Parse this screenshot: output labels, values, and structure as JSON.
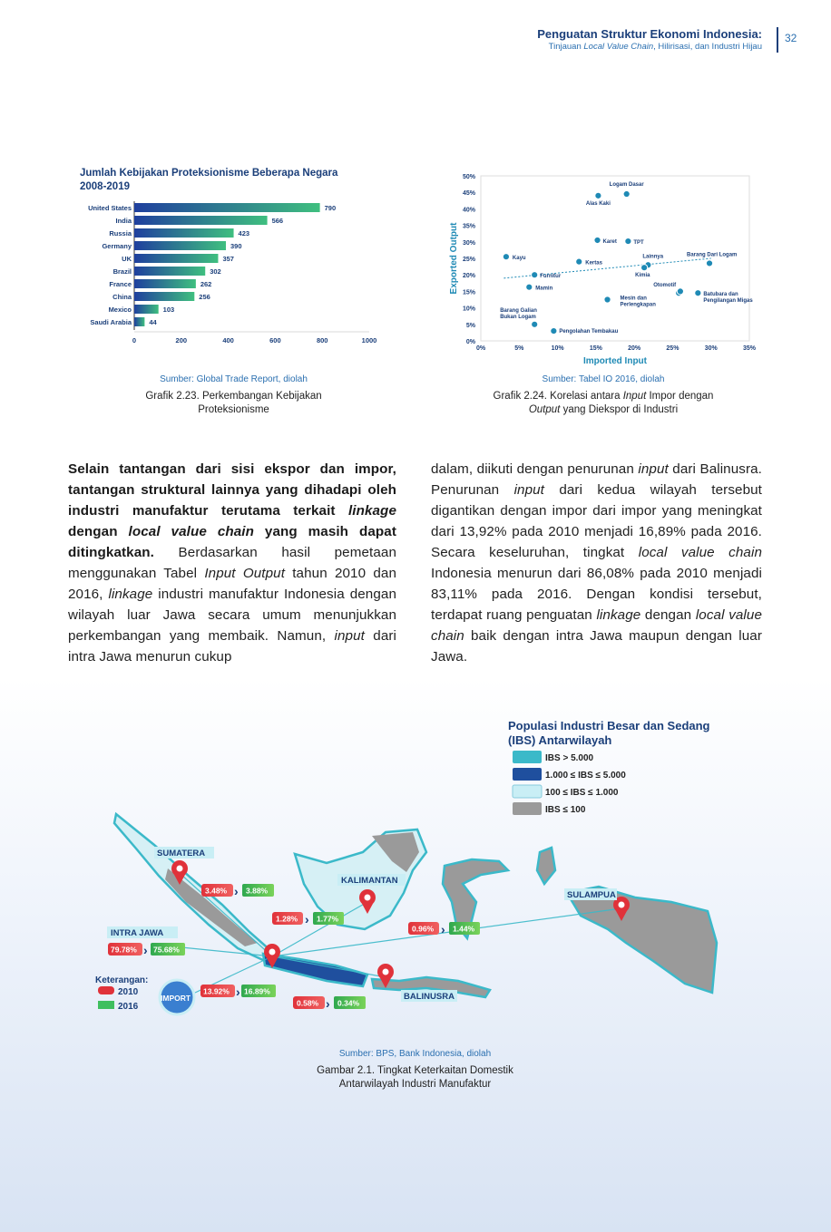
{
  "header": {
    "title": "Penguatan Struktur Ekonomi Indonesia:",
    "subtitle_pre": "Tinjauan ",
    "subtitle_italic": "Local Value Chain",
    "subtitle_post": ", Hilirisasi, dan Industri Hijau",
    "page_number": "32"
  },
  "chart_data": [
    {
      "type": "bar",
      "title_line1": "Jumlah Kebijakan Proteksionisme Beberapa Negara",
      "title_line2": "2008-2019",
      "categories": [
        "United States",
        "India",
        "Russia",
        "Germany",
        "UK",
        "Brazil",
        "France",
        "China",
        "Mexico",
        "Saudi Arabia"
      ],
      "values": [
        790,
        566,
        423,
        390,
        357,
        302,
        262,
        256,
        103,
        44
      ],
      "xlim": [
        0,
        1000
      ],
      "xticks": [
        "0",
        "200",
        "400",
        "600",
        "800",
        "1000"
      ],
      "orientation": "horizontal",
      "colors": {
        "start": "#1f3f9e",
        "end": "#3fbf7f"
      }
    },
    {
      "type": "scatter",
      "xlabel": "Imported Input",
      "ylabel": "Exported Output",
      "xlim": [
        0,
        35
      ],
      "ylim": [
        0,
        50
      ],
      "xticks": [
        "0%",
        "5%",
        "10%",
        "15%",
        "20%",
        "25%",
        "30%",
        "35%"
      ],
      "yticks": [
        "0%",
        "5%",
        "10%",
        "15%",
        "20%",
        "25%",
        "30%",
        "35%",
        "40%",
        "45%",
        "50%"
      ],
      "points": [
        {
          "label": "Logam Dasar",
          "x": 19,
          "y": 44.5
        },
        {
          "label": "Alas Kaki",
          "x": 15.3,
          "y": 44
        },
        {
          "label": "Karet",
          "x": 15.2,
          "y": 30.5
        },
        {
          "label": "TPT",
          "x": 19.2,
          "y": 30.2
        },
        {
          "label": "Kayu",
          "x": 3.3,
          "y": 25.5
        },
        {
          "label": "Kertas",
          "x": 12.8,
          "y": 24
        },
        {
          "label": "Lainnya",
          "x": 21.8,
          "y": 23
        },
        {
          "label": "Barang Dari Logam",
          "x": 29.8,
          "y": 23.5
        },
        {
          "label": "Furnitur",
          "x": 7,
          "y": 20
        },
        {
          "label": "Kimia",
          "x": 21.3,
          "y": 22.2
        },
        {
          "label": "Mamin",
          "x": 6.3,
          "y": 16.3
        },
        {
          "label": "Otomotif",
          "x": 25.8,
          "y": 14.5
        },
        {
          "label": "Batubara dan Pengilangan Migas",
          "x": 28.3,
          "y": 14.5
        },
        {
          "label": "Mesin dan Perlengkapan",
          "x": 16.5,
          "y": 12.5
        },
        {
          "label": "Barang Galian Bukan Logam",
          "x": 7,
          "y": 5
        },
        {
          "label": "Pengolahan Tembakau",
          "x": 9.5,
          "y": 3
        },
        {
          "label": "",
          "x": 26,
          "y": 15
        }
      ],
      "trend": [
        [
          3,
          19
        ],
        [
          30,
          25
        ]
      ],
      "color": "#1f8ab5"
    }
  ],
  "fig1": {
    "source": "Sumber: Global Trade Report, diolah",
    "caption_line1": "Grafik 2.23. Perkembangan Kebijakan",
    "caption_line2": "Proteksionisme"
  },
  "fig2": {
    "source": "Sumber: Tabel IO 2016, diolah",
    "cap_a": "Grafik 2.24. Korelasi antara ",
    "cap_b": "Input",
    "cap_c": " Impor dengan",
    "cap_d": "Output",
    "cap_e": " yang Diekspor di Industri"
  },
  "body_left": {
    "b1": "Selain tantangan dari sisi ekspor dan impor, tantangan struktural lainnya yang dihadapi oleh industri manufaktur terutama terkait ",
    "b2": "linkage",
    "b3": " dengan ",
    "b4": "local value chain",
    "b5": " yang masih dapat ditingkatkan.",
    "t1": " Berdasarkan hasil pemetaan menggunakan Tabel ",
    "t2": "Input Output",
    "t3": " tahun 2010 dan 2016, ",
    "t4": "linkage",
    "t5": " industri manufaktur Indonesia dengan wilayah luar Jawa secara umum menunjukkan perkembangan yang membaik. Namun, ",
    "t6": "input",
    "t7": " dari intra Jawa menurun cukup"
  },
  "body_right": {
    "t1": "dalam, diikuti dengan penurunan ",
    "t2": "input",
    "t3": " dari Balinusra. Penurunan ",
    "t4": "input",
    "t5": " dari kedua wilayah tersebut digantikan dengan impor dari impor yang meningkat dari 13,92% pada 2010 menjadi 16,89% pada 2016. Secara keseluruhan, tingkat ",
    "t6": "local value chain",
    "t7": " Indonesia menurun dari 86,08% pada 2010 menjadi 83,11% pada 2016. Dengan kondisi tersebut, terdapat ruang penguatan ",
    "t8": "linkage",
    "t9": " dengan ",
    "t10": "local value chain",
    "t11": " baik dengan intra Jawa maupun dengan luar Jawa."
  },
  "map": {
    "title_line1": "Populasi Industri Besar dan Sedang",
    "title_line2": "(IBS) Antarwilayah",
    "legend": [
      {
        "label": "IBS > 5.000",
        "color": "#3bb9c9"
      },
      {
        "label": "1.000 ≤ IBS ≤ 5.000",
        "color": "#1f4f9e"
      },
      {
        "label": "100 ≤ IBS ≤ 1.000",
        "color": "#c9eef5"
      },
      {
        "label": "IBS ≤ 100",
        "color": "#9a9a9a"
      }
    ],
    "regions": {
      "sumatera": "SUMATERA",
      "kalimantan": "KALIMANTAN",
      "sulampua": "SULAMPUA",
      "balinusra": "BALINUSRA",
      "intra_jawa": "INTRA JAWA",
      "import": "IMPORT"
    },
    "values": {
      "sumatera_2010": "3.48%",
      "sumatera_2016": "3.88%",
      "kalimantan_2010": "1.28%",
      "kalimantan_2016": "1.77%",
      "sulampua_2010": "0.96%",
      "sulampua_2016": "1.44%",
      "jawa_2010": "79.78%",
      "jawa_2016": "75.68%",
      "import_2010": "13.92%",
      "import_2016": "16.89%",
      "balinusra_2010": "0.58%",
      "balinusra_2016": "0.34%"
    },
    "keterangan": "Keterangan:",
    "year_2010": "2010",
    "year_2016": "2016",
    "source": "Sumber: BPS, Bank Indonesia, diolah",
    "caption_line1": "Gambar 2.1. Tingkat Keterkaitan Domestik",
    "caption_line2": "Antarwilayah Industri Manufaktur"
  }
}
